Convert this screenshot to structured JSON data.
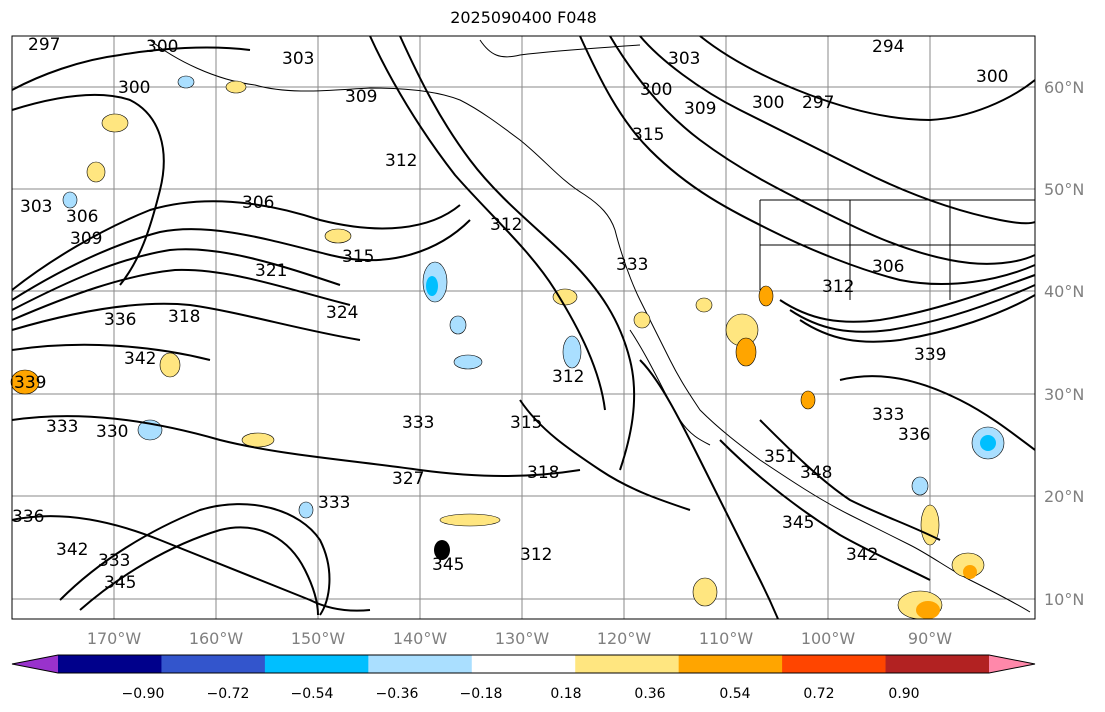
{
  "title": "2025090400 F048",
  "lat_labels": [
    "60°N",
    "50°N",
    "40°N",
    "30°N",
    "20°N",
    "10°N"
  ],
  "lon_labels": [
    "170°W",
    "160°W",
    "150°W",
    "140°W",
    "130°W",
    "120°W",
    "110°W",
    "100°W",
    "90°W"
  ],
  "colorbar": {
    "tick_labels": [
      "−0.90",
      "−0.72",
      "−0.54",
      "−0.36",
      "−0.18",
      "0.18",
      "0.36",
      "0.54",
      "0.72",
      "0.90"
    ],
    "colors": [
      "#9932cc",
      "#00008b",
      "#3355cc",
      "#00bfff",
      "#aadfff",
      "#ffffff",
      "#ffe680",
      "#ffa500",
      "#ff4500",
      "#b22222",
      "#ff88aa"
    ]
  },
  "contour_labels": [
    "297",
    "300",
    "303",
    "300",
    "300",
    "306",
    "309",
    "303",
    "306",
    "309",
    "312",
    "315",
    "318",
    "312",
    "312",
    "315",
    "321",
    "324",
    "336",
    "342",
    "339",
    "333",
    "330",
    "327",
    "333",
    "336",
    "342",
    "333",
    "345",
    "345",
    "333",
    "333",
    "318",
    "315",
    "312",
    "309",
    "303",
    "300",
    "297",
    "294",
    "300",
    "306",
    "312",
    "339",
    "336",
    "333",
    "348",
    "345",
    "342",
    "351"
  ]
}
